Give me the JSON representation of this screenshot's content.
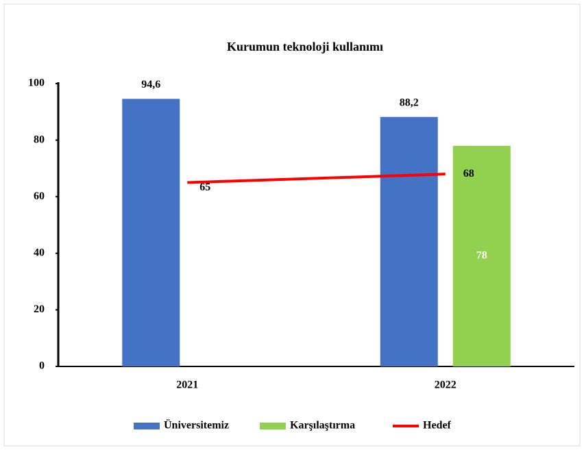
{
  "chart_data": {
    "type": "bar",
    "title": "Kurumun teknoloji kullanımı",
    "categories": [
      "2021",
      "2022"
    ],
    "series": [
      {
        "name": "Üniversitemiz",
        "color": "#4472c4",
        "values": [
          94.6,
          88.2
        ],
        "value_labels": [
          "94,6",
          "88,2"
        ]
      },
      {
        "name": "Karşılaştırma",
        "color": "#92d050",
        "values": [
          null,
          78
        ]
      },
      {
        "name": "Hedef",
        "type": "line",
        "color": "#ff0000",
        "values": [
          65,
          68
        ]
      }
    ],
    "ylim": [
      0,
      100
    ],
    "yticks": [
      0,
      20,
      40,
      60,
      80,
      100
    ],
    "grid": false,
    "legend": "bottom"
  }
}
